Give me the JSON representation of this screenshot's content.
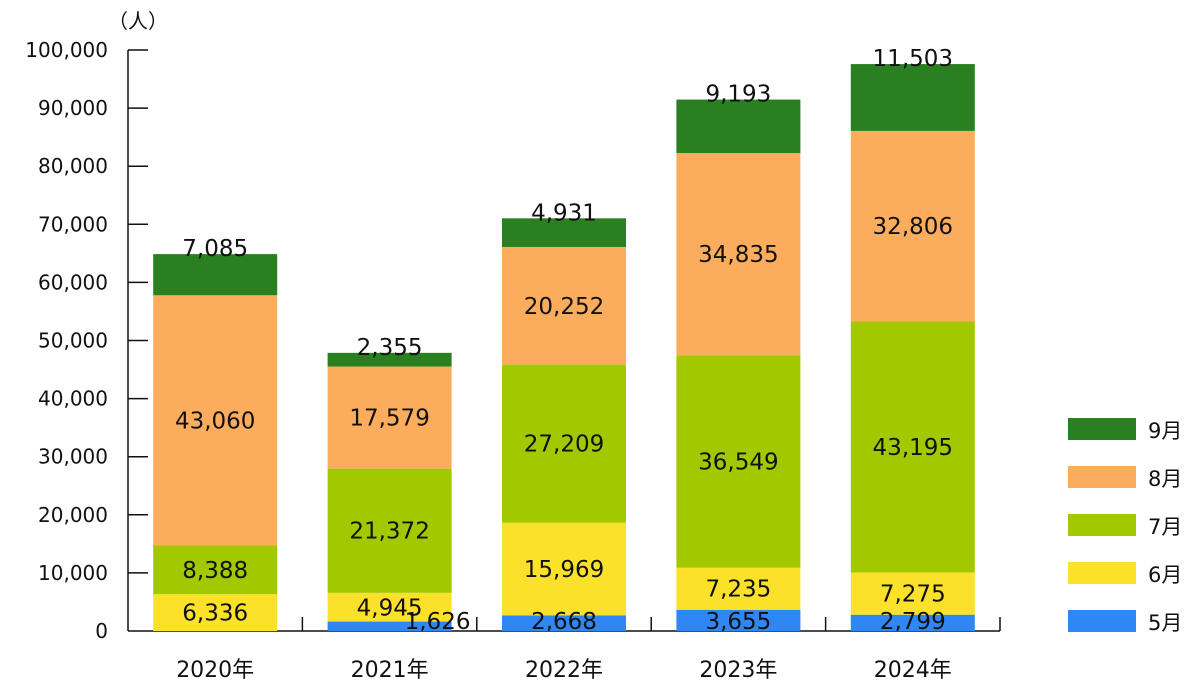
{
  "chart_data": {
    "type": "bar",
    "stacked": true,
    "unit_label": "（人）",
    "categories": [
      "2020年",
      "2021年",
      "2022年",
      "2023年",
      "2024年"
    ],
    "ylim": [
      0,
      100000
    ],
    "yticks": [
      "0",
      "10,000",
      "20,000",
      "30,000",
      "40,000",
      "50,000",
      "60,000",
      "70,000",
      "80,000",
      "90,000",
      "100,000"
    ],
    "grid": false,
    "legend_position": "right",
    "series": [
      {
        "name": "5月",
        "color": "#2f86f5",
        "values": [
          0,
          1626,
          2668,
          3655,
          2799
        ],
        "labels": [
          "",
          "1,626",
          "2,668",
          "3,655",
          "2,799"
        ]
      },
      {
        "name": "6月",
        "color": "#fbe12a",
        "values": [
          6336,
          4945,
          15969,
          7235,
          7275
        ],
        "labels": [
          "6,336",
          "4,945",
          "15,969",
          "7,235",
          "7,275"
        ]
      },
      {
        "name": "7月",
        "color": "#a2c900",
        "values": [
          8388,
          21372,
          27209,
          36549,
          43195
        ],
        "labels": [
          "8,388",
          "21,372",
          "27,209",
          "36,549",
          "43,195"
        ]
      },
      {
        "name": "8月",
        "color": "#fbad5d",
        "values": [
          43060,
          17579,
          20252,
          34835,
          32806
        ],
        "labels": [
          "43,060",
          "17,579",
          "20,252",
          "34,835",
          "32,806"
        ]
      },
      {
        "name": "9月",
        "color": "#2a8021",
        "values": [
          7085,
          2355,
          4931,
          9193,
          11503
        ],
        "labels": [
          "7,085",
          "2,355",
          "4,931",
          "9,193",
          "11,503"
        ]
      }
    ]
  }
}
